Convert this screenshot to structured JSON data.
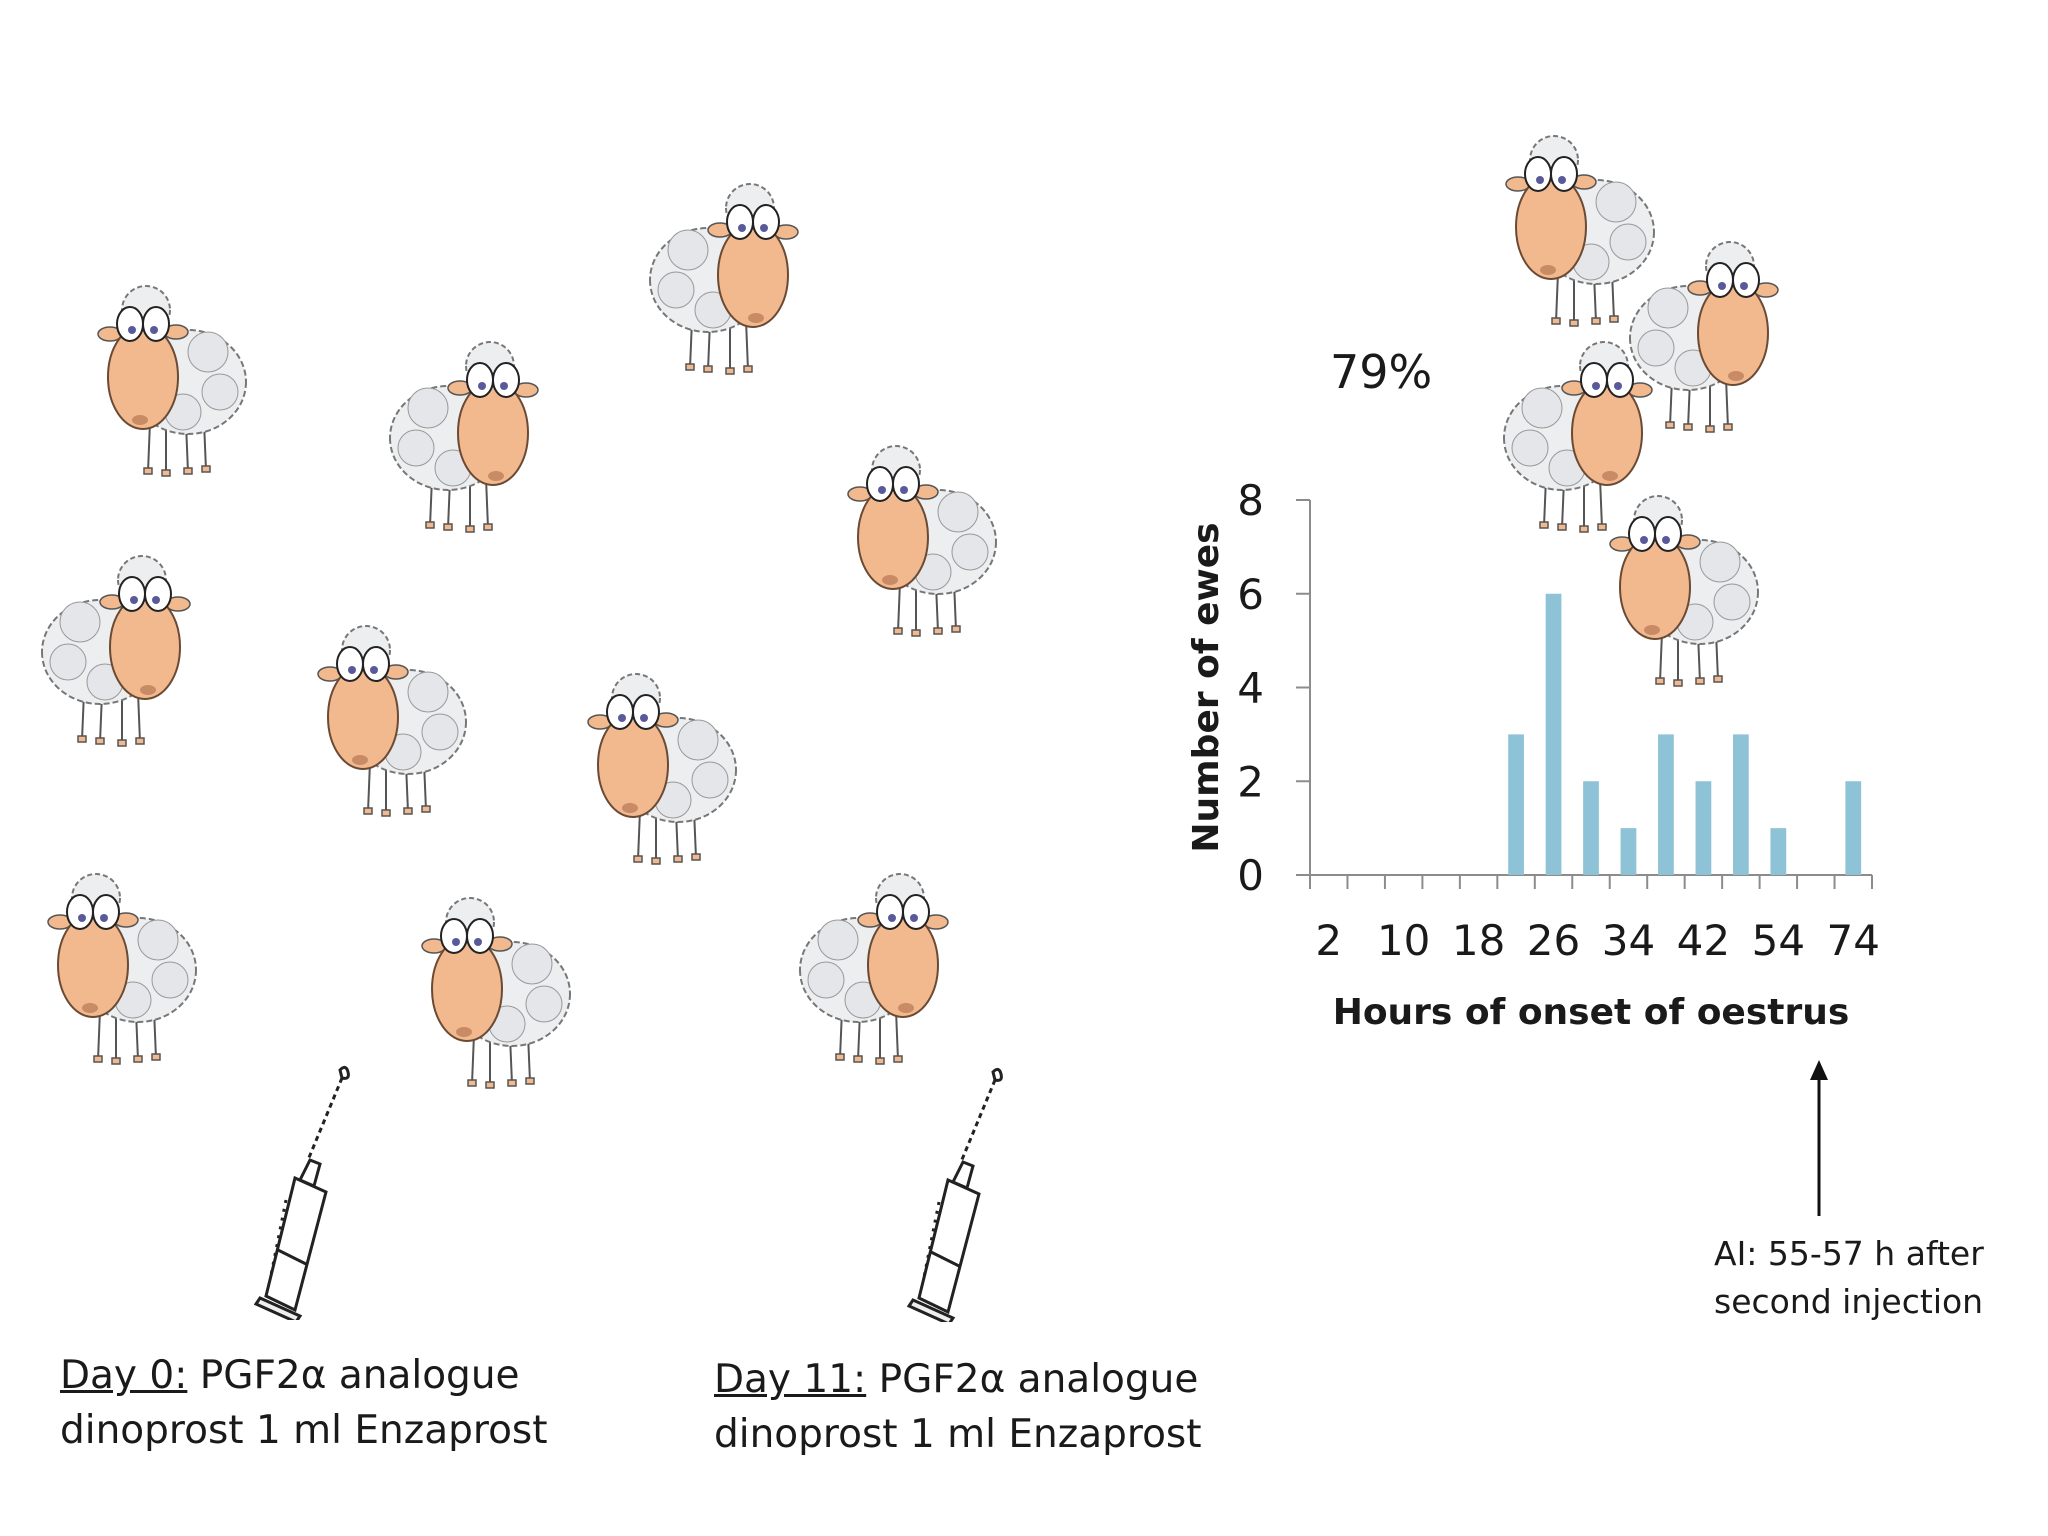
{
  "captions": [
    {
      "day": "Day 0:",
      "line1_rest": " PGF2α analogue",
      "line2": "dinoprost 1 ml Enzaprost"
    },
    {
      "day": "Day 11:",
      "line1_rest": " PGF2α analogue",
      "line2": "dinoprost 1 ml Enzaprost"
    }
  ],
  "percentage": "79%",
  "ai_annotation": {
    "line1": "AI: 55-57 h after",
    "line2": "second injection"
  },
  "colors": {
    "bar": "#8ec2d6",
    "axis": "#8c8c8c",
    "sheep_face": "#f2b98f",
    "wool": "#eceef0"
  },
  "icons": [
    "sheep-icon",
    "syringe-icon",
    "up-arrow-icon"
  ],
  "chart_data": {
    "type": "bar",
    "xlabel": "Hours of onset of oestrus",
    "ylabel": "Number of ewes",
    "ylim": [
      0,
      8
    ],
    "yticks": [
      0,
      2,
      4,
      6,
      8
    ],
    "xtick_labels": [
      "2",
      "10",
      "18",
      "26",
      "34",
      "42",
      "54",
      "74"
    ],
    "categories": [
      2,
      6,
      10,
      14,
      18,
      22,
      26,
      30,
      34,
      38,
      42,
      46,
      54,
      70,
      74
    ],
    "values": [
      0,
      0,
      0,
      0,
      0,
      3,
      6,
      2,
      1,
      3,
      2,
      3,
      1,
      0,
      2
    ],
    "grid": false
  }
}
